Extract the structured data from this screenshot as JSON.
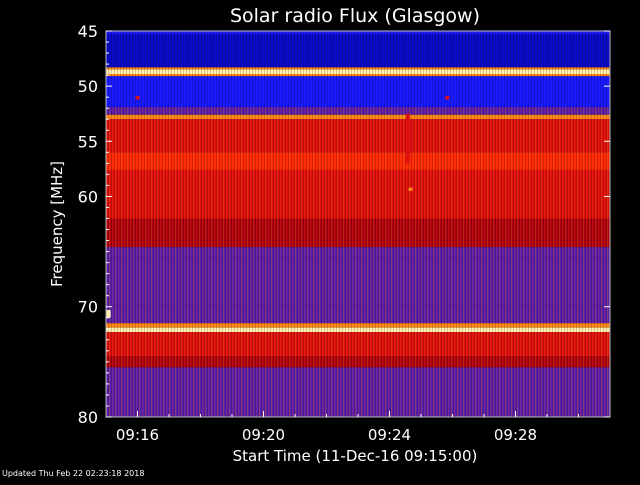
{
  "chart_data": {
    "type": "heatmap",
    "title": "Solar radio Flux (Glasgow)",
    "xlabel": "Start Time (11-Dec-16 09:15:00)",
    "ylabel": "Frequency [MHz]",
    "x_unit": "time",
    "x_range": [
      "09:15:00",
      "09:31:00"
    ],
    "xticks": [
      "09:16",
      "09:20",
      "09:24",
      "09:28"
    ],
    "y_range": [
      45,
      80
    ],
    "y_inverted": true,
    "yticks": [
      45,
      50,
      55,
      60,
      70,
      80
    ],
    "colormap": [
      "#000080",
      "#0000ff",
      "#8000a0",
      "#ff0000",
      "#ff8000",
      "#ffff80"
    ],
    "bands": [
      {
        "from": 45.0,
        "to": 45.3,
        "level": "blue"
      },
      {
        "from": 45.3,
        "to": 48.3,
        "level": "deep-blue"
      },
      {
        "from": 48.3,
        "to": 48.5,
        "level": "orange"
      },
      {
        "from": 48.5,
        "to": 48.9,
        "level": "cream"
      },
      {
        "from": 48.9,
        "to": 49.1,
        "level": "orange"
      },
      {
        "from": 49.1,
        "to": 51.9,
        "level": "blue"
      },
      {
        "from": 51.9,
        "to": 52.6,
        "level": "purple"
      },
      {
        "from": 52.6,
        "to": 53.0,
        "level": "orange"
      },
      {
        "from": 53.0,
        "to": 56.0,
        "level": "red"
      },
      {
        "from": 56.0,
        "to": 57.6,
        "level": "bright-red"
      },
      {
        "from": 57.6,
        "to": 62.0,
        "level": "red"
      },
      {
        "from": 62.0,
        "to": 64.6,
        "level": "dark-red"
      },
      {
        "from": 64.6,
        "to": 65.6,
        "level": "purple"
      },
      {
        "from": 65.6,
        "to": 70.0,
        "level": "purple"
      },
      {
        "from": 70.0,
        "to": 71.5,
        "level": "purple"
      },
      {
        "from": 71.5,
        "to": 71.9,
        "level": "orange"
      },
      {
        "from": 71.9,
        "to": 72.3,
        "level": "cream"
      },
      {
        "from": 72.3,
        "to": 74.5,
        "level": "red"
      },
      {
        "from": 74.5,
        "to": 75.5,
        "level": "dark-red"
      },
      {
        "from": 75.5,
        "to": 80.0,
        "level": "purple"
      }
    ],
    "events": [
      {
        "time": "09:24:35",
        "freq_from": 52.5,
        "freq_to": 57.0,
        "level": "red"
      },
      {
        "time": "09:24:40",
        "freq_from": 59.2,
        "freq_to": 59.5,
        "level": "orange"
      },
      {
        "time": "09:16:00",
        "freq_from": 50.9,
        "freq_to": 51.2,
        "level": "red"
      },
      {
        "time": "09:25:50",
        "freq_from": 50.9,
        "freq_to": 51.2,
        "level": "red"
      },
      {
        "time": "09:15:05",
        "freq_from": 70.3,
        "freq_to": 71.0,
        "level": "cream"
      }
    ]
  },
  "footer": "Updated Thu Feb 22 02:23:18 2018"
}
